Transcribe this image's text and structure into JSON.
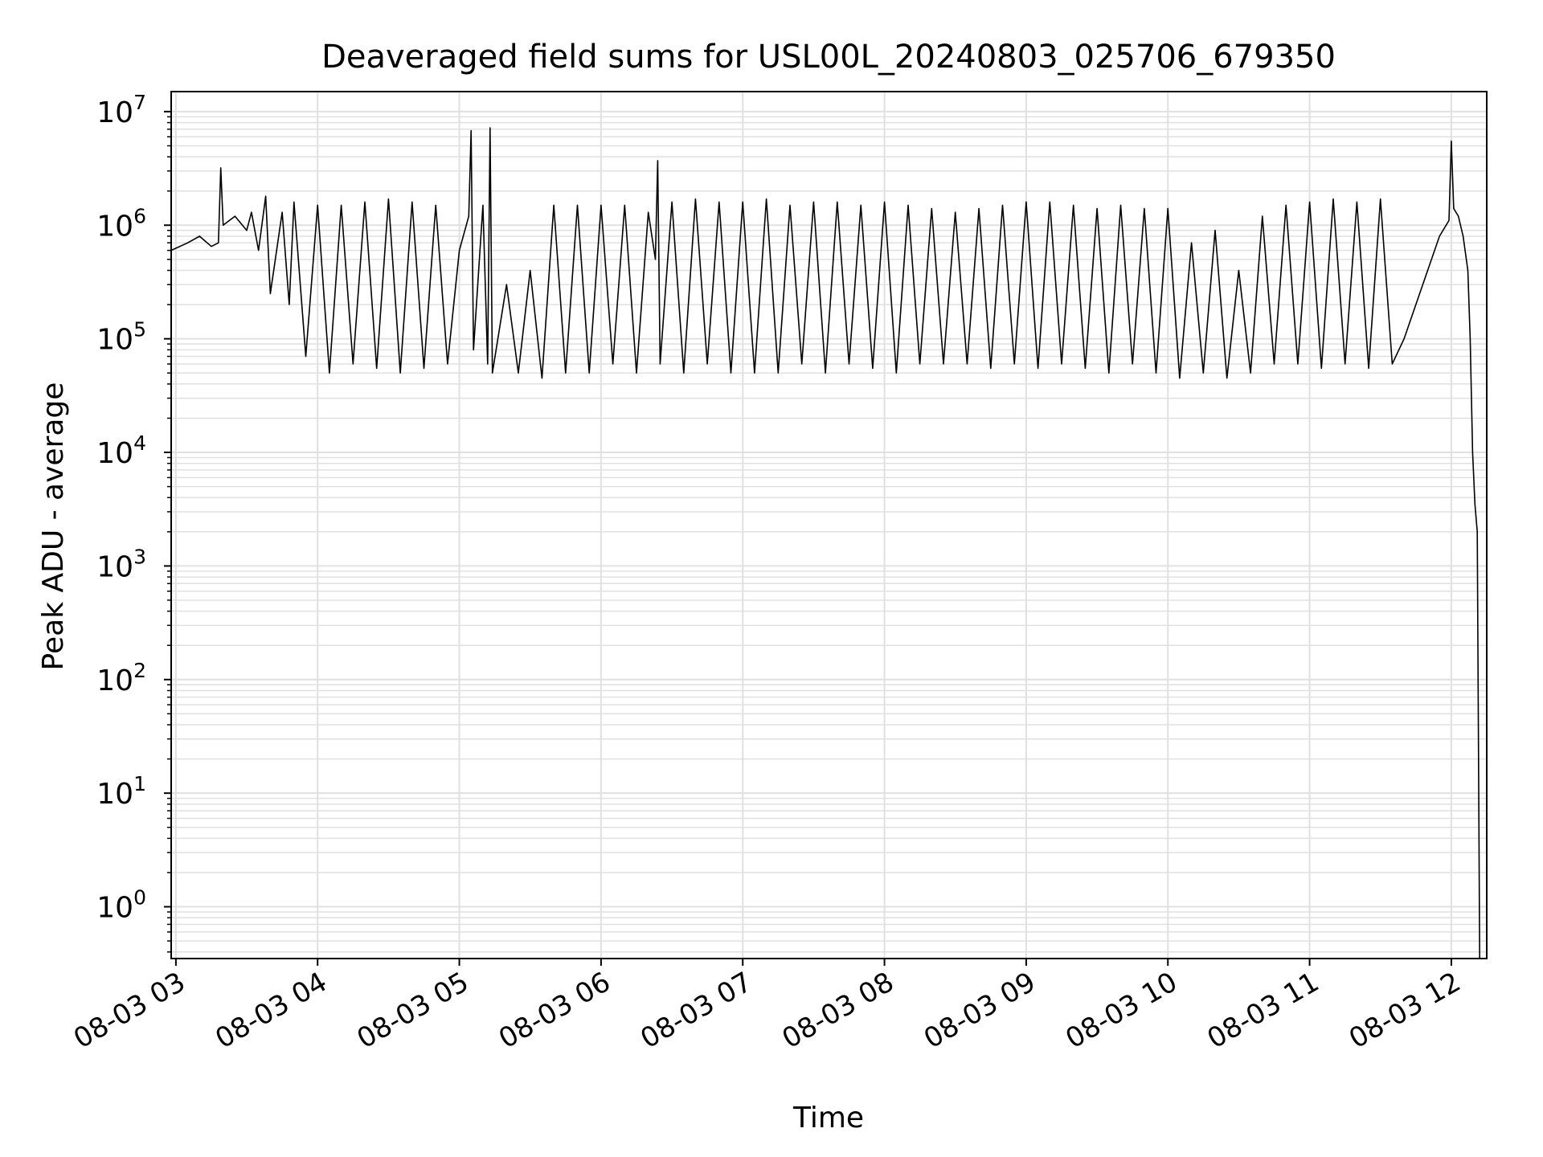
{
  "chart_data": {
    "type": "line",
    "title": "Deaveraged field sums for USL00L_20240803_025706_679350",
    "xlabel": "Time",
    "ylabel": "Peak ADU - average",
    "y_scale": "log",
    "ylim": [
      0.35,
      15000000
    ],
    "xlim": [
      "2024-08-03 02:58",
      "2024-08-03 12:15"
    ],
    "grid": true,
    "line_color": "#000000",
    "grid_color": "#e0e0e0",
    "x_ticks": [
      {
        "value": "2024-08-03 03:00",
        "label": "08-03 03"
      },
      {
        "value": "2024-08-03 04:00",
        "label": "08-03 04"
      },
      {
        "value": "2024-08-03 05:00",
        "label": "08-03 05"
      },
      {
        "value": "2024-08-03 06:00",
        "label": "08-03 06"
      },
      {
        "value": "2024-08-03 07:00",
        "label": "08-03 07"
      },
      {
        "value": "2024-08-03 08:00",
        "label": "08-03 08"
      },
      {
        "value": "2024-08-03 09:00",
        "label": "08-03 09"
      },
      {
        "value": "2024-08-03 10:00",
        "label": "08-03 10"
      },
      {
        "value": "2024-08-03 11:00",
        "label": "08-03 11"
      },
      {
        "value": "2024-08-03 12:00",
        "label": "08-03 12"
      }
    ],
    "y_ticks": [
      {
        "value": 1,
        "base": "10",
        "exp": "0"
      },
      {
        "value": 10,
        "base": "10",
        "exp": "1"
      },
      {
        "value": 100,
        "base": "10",
        "exp": "2"
      },
      {
        "value": 1000,
        "base": "10",
        "exp": "3"
      },
      {
        "value": 10000,
        "base": "10",
        "exp": "4"
      },
      {
        "value": 100000,
        "base": "10",
        "exp": "5"
      },
      {
        "value": 1000000,
        "base": "10",
        "exp": "6"
      },
      {
        "value": 10000000,
        "base": "10",
        "exp": "7"
      }
    ],
    "series": [
      {
        "x": [
          "2024-08-03 02:58",
          "2024-08-03 03:05",
          "2024-08-03 03:10",
          "2024-08-03 03:15",
          "2024-08-03 03:18",
          "2024-08-03 03:19",
          "2024-08-03 03:20",
          "2024-08-03 03:25",
          "2024-08-03 03:30",
          "2024-08-03 03:32",
          "2024-08-03 03:35",
          "2024-08-03 03:38",
          "2024-08-03 03:40",
          "2024-08-03 03:45",
          "2024-08-03 03:48",
          "2024-08-03 03:50",
          "2024-08-03 03:55",
          "2024-08-03 04:00",
          "2024-08-03 04:05",
          "2024-08-03 04:10",
          "2024-08-03 04:15",
          "2024-08-03 04:20",
          "2024-08-03 04:25",
          "2024-08-03 04:30",
          "2024-08-03 04:35",
          "2024-08-03 04:40",
          "2024-08-03 04:45",
          "2024-08-03 04:50",
          "2024-08-03 04:55",
          "2024-08-03 05:00",
          "2024-08-03 05:04",
          "2024-08-03 05:05",
          "2024-08-03 05:06",
          "2024-08-03 05:10",
          "2024-08-03 05:12",
          "2024-08-03 05:13",
          "2024-08-03 05:14",
          "2024-08-03 05:20",
          "2024-08-03 05:25",
          "2024-08-03 05:30",
          "2024-08-03 05:35",
          "2024-08-03 05:40",
          "2024-08-03 05:45",
          "2024-08-03 05:50",
          "2024-08-03 05:55",
          "2024-08-03 06:00",
          "2024-08-03 06:05",
          "2024-08-03 06:10",
          "2024-08-03 06:15",
          "2024-08-03 06:20",
          "2024-08-03 06:23",
          "2024-08-03 06:24",
          "2024-08-03 06:25",
          "2024-08-03 06:30",
          "2024-08-03 06:35",
          "2024-08-03 06:40",
          "2024-08-03 06:45",
          "2024-08-03 06:50",
          "2024-08-03 06:55",
          "2024-08-03 07:00",
          "2024-08-03 07:05",
          "2024-08-03 07:10",
          "2024-08-03 07:15",
          "2024-08-03 07:20",
          "2024-08-03 07:25",
          "2024-08-03 07:30",
          "2024-08-03 07:35",
          "2024-08-03 07:40",
          "2024-08-03 07:45",
          "2024-08-03 07:50",
          "2024-08-03 07:55",
          "2024-08-03 08:00",
          "2024-08-03 08:05",
          "2024-08-03 08:10",
          "2024-08-03 08:15",
          "2024-08-03 08:20",
          "2024-08-03 08:25",
          "2024-08-03 08:30",
          "2024-08-03 08:35",
          "2024-08-03 08:40",
          "2024-08-03 08:45",
          "2024-08-03 08:50",
          "2024-08-03 08:55",
          "2024-08-03 09:00",
          "2024-08-03 09:05",
          "2024-08-03 09:10",
          "2024-08-03 09:15",
          "2024-08-03 09:20",
          "2024-08-03 09:25",
          "2024-08-03 09:30",
          "2024-08-03 09:35",
          "2024-08-03 09:40",
          "2024-08-03 09:45",
          "2024-08-03 09:50",
          "2024-08-03 09:55",
          "2024-08-03 10:00",
          "2024-08-03 10:05",
          "2024-08-03 10:10",
          "2024-08-03 10:15",
          "2024-08-03 10:20",
          "2024-08-03 10:25",
          "2024-08-03 10:30",
          "2024-08-03 10:35",
          "2024-08-03 10:40",
          "2024-08-03 10:45",
          "2024-08-03 10:50",
          "2024-08-03 10:55",
          "2024-08-03 11:00",
          "2024-08-03 11:05",
          "2024-08-03 11:10",
          "2024-08-03 11:15",
          "2024-08-03 11:20",
          "2024-08-03 11:25",
          "2024-08-03 11:30",
          "2024-08-03 11:35",
          "2024-08-03 11:40",
          "2024-08-03 11:45",
          "2024-08-03 11:50",
          "2024-08-03 11:55",
          "2024-08-03 11:59",
          "2024-08-03 12:00",
          "2024-08-03 12:01",
          "2024-08-03 12:03",
          "2024-08-03 12:05",
          "2024-08-03 12:07",
          "2024-08-03 12:08",
          "2024-08-03 12:09",
          "2024-08-03 12:10",
          "2024-08-03 12:11",
          "2024-08-03 12:12"
        ],
        "y": [
          600000,
          700000,
          800000,
          650000,
          700000,
          3200000,
          1000000,
          1200000,
          900000,
          1300000,
          600000,
          1800000,
          250000,
          1300000,
          200000,
          1600000,
          70000,
          1500000,
          50000,
          1500000,
          60000,
          1600000,
          55000,
          1700000,
          50000,
          1600000,
          55000,
          1500000,
          60000,
          600000,
          1200000,
          6800000,
          80000,
          1500000,
          60000,
          7200000,
          50000,
          300000,
          50000,
          400000,
          45000,
          1500000,
          50000,
          1500000,
          50000,
          1500000,
          60000,
          1500000,
          50000,
          1300000,
          500000,
          3700000,
          60000,
          1600000,
          50000,
          1700000,
          60000,
          1600000,
          50000,
          1600000,
          50000,
          1700000,
          50000,
          1500000,
          60000,
          1600000,
          50000,
          1600000,
          60000,
          1500000,
          55000,
          1600000,
          50000,
          1500000,
          60000,
          1400000,
          60000,
          1300000,
          60000,
          1400000,
          55000,
          1500000,
          60000,
          1600000,
          55000,
          1600000,
          60000,
          1500000,
          55000,
          1400000,
          50000,
          1500000,
          60000,
          1400000,
          50000,
          1400000,
          45000,
          700000,
          50000,
          900000,
          45000,
          400000,
          50000,
          1200000,
          60000,
          1500000,
          60000,
          1600000,
          55000,
          1700000,
          60000,
          1600000,
          55000,
          1700000,
          60000,
          100000,
          200000,
          400000,
          800000,
          1100000,
          5500000,
          1400000,
          1200000,
          800000,
          400000,
          100000,
          10000,
          3500,
          2000,
          0.35
        ]
      }
    ]
  }
}
